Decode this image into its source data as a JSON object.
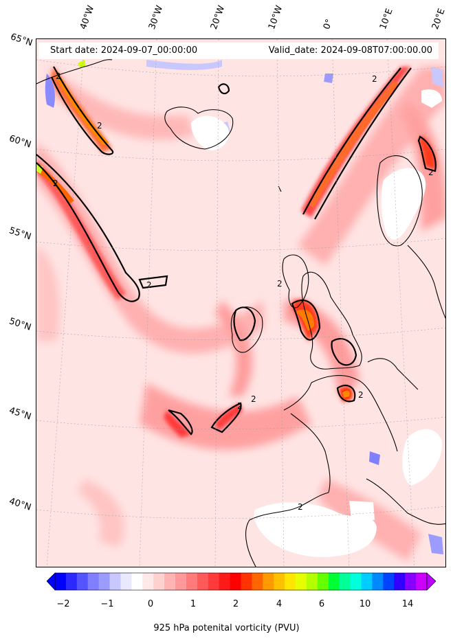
{
  "header": {
    "start_date": "Start date: 2024-09-07_00:00:00",
    "valid_date": "Valid_date: 2024-09-08T07:00:00.00"
  },
  "lon_labels": [
    "40°W",
    "30°W",
    "20°W",
    "10°W",
    "0°",
    "10°E",
    "20°E"
  ],
  "lat_labels": [
    "65°N",
    "60°N",
    "55°N",
    "50°N",
    "45°N",
    "40°N"
  ],
  "contour_label": "2",
  "colorbar": {
    "label": "925 hPa potenital vorticity (PVU)",
    "ticks": [
      "−2",
      "−1",
      "0",
      "1",
      "2",
      "4",
      "6",
      "10",
      "14"
    ],
    "colors": [
      "#0000ff",
      "#2a2aff",
      "#5555ff",
      "#7f7fff",
      "#9c9cff",
      "#c8c8ff",
      "#e8e8ff",
      "#ffffff",
      "#ffe8e8",
      "#ffd0d0",
      "#ffb3b3",
      "#ff9898",
      "#ff7a7a",
      "#ff5a5a",
      "#ff3a3a",
      "#ff1a1a",
      "#ff0000",
      "#ff3300",
      "#ff6600",
      "#ff9900",
      "#ffc000",
      "#ffe600",
      "#e6ff00",
      "#b3ff00",
      "#66ff00",
      "#00ff33",
      "#00ff99",
      "#00ffdd",
      "#00ccff",
      "#0088ff",
      "#0044ff",
      "#3300ff",
      "#8800ff",
      "#cc00ff"
    ],
    "extend_low_color": "#0000ff",
    "extend_high_color": "#bb00ff"
  },
  "colors": {
    "contour": "#000000",
    "background_field": "#ffe4e4"
  }
}
